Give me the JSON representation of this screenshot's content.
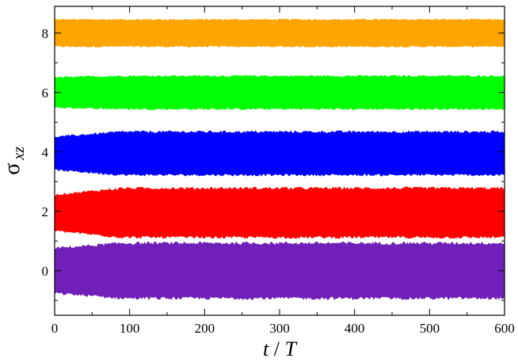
{
  "chart_data": {
    "type": "area",
    "title": "",
    "xlabel": "t / T",
    "ylabel": "σxz",
    "ylabel_parts": {
      "symbol": "σ",
      "subscript": "xz"
    },
    "xlabel_parts": {
      "t": "t",
      "slash": "/",
      "T": "T"
    },
    "xlim": [
      0,
      600
    ],
    "ylim": [
      -1.5,
      8.9
    ],
    "x_ticks": [
      0,
      100,
      200,
      300,
      400,
      500,
      600
    ],
    "y_ticks": [
      0,
      2,
      4,
      6,
      8
    ],
    "grid": false,
    "series": [
      {
        "color": "#ffa500",
        "center": 8.0,
        "amplitude": 0.45,
        "start_amplitude": 0.45
      },
      {
        "color": "#00ff00",
        "center": 6.0,
        "amplitude": 0.55,
        "start_amplitude": 0.5
      },
      {
        "color": "#0000ff",
        "center": 3.95,
        "amplitude": 0.72,
        "start_amplitude": 0.55
      },
      {
        "color": "#ff0000",
        "center": 1.95,
        "amplitude": 0.82,
        "start_amplitude": 0.6
      },
      {
        "color": "#7020b8",
        "center": 0.0,
        "amplitude": 0.92,
        "start_amplitude": 0.75
      }
    ]
  }
}
